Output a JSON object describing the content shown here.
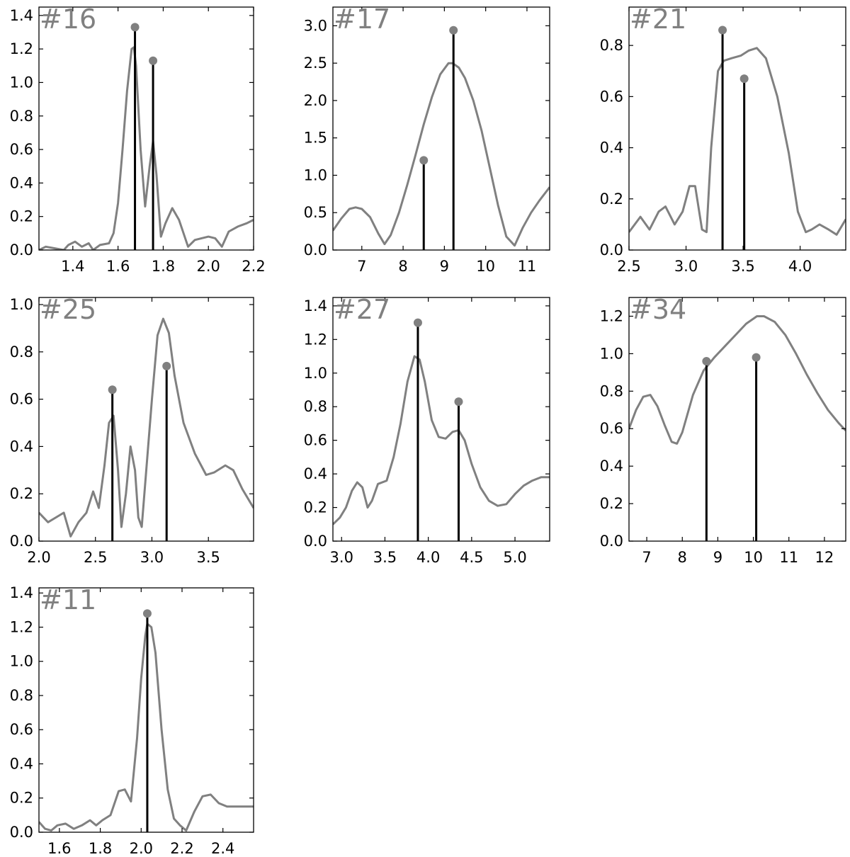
{
  "colors": {
    "curve": "#808080",
    "stem": "#000000",
    "marker": "#808080",
    "label": "#808080"
  },
  "chart_data": [
    {
      "type": "line",
      "label": "#16",
      "xlim": [
        1.25,
        2.2
      ],
      "ylim": [
        0,
        1.45
      ],
      "xticks": [
        1.4,
        1.6,
        1.8,
        2.0,
        2.2
      ],
      "xtick_labels": [
        "1.4",
        "1.6",
        "1.8",
        "2.0",
        "2.2"
      ],
      "yticks": [
        0,
        0.2,
        0.4,
        0.6,
        0.8,
        1.0,
        1.2,
        1.4
      ],
      "ytick_labels": [
        "0.0",
        "0.2",
        "0.4",
        "0.6",
        "0.8",
        "1.0",
        "1.2",
        "1.4"
      ],
      "curve": [
        [
          1.25,
          0.0
        ],
        [
          1.28,
          0.02
        ],
        [
          1.32,
          0.01
        ],
        [
          1.36,
          0.0
        ],
        [
          1.38,
          0.03
        ],
        [
          1.41,
          0.05
        ],
        [
          1.44,
          0.02
        ],
        [
          1.47,
          0.04
        ],
        [
          1.49,
          0.0
        ],
        [
          1.52,
          0.03
        ],
        [
          1.56,
          0.04
        ],
        [
          1.58,
          0.1
        ],
        [
          1.6,
          0.28
        ],
        [
          1.62,
          0.6
        ],
        [
          1.64,
          0.95
        ],
        [
          1.66,
          1.2
        ],
        [
          1.67,
          1.21
        ],
        [
          1.68,
          1.1
        ],
        [
          1.7,
          0.6
        ],
        [
          1.72,
          0.26
        ],
        [
          1.74,
          0.5
        ],
        [
          1.755,
          0.65
        ],
        [
          1.77,
          0.45
        ],
        [
          1.79,
          0.08
        ],
        [
          1.81,
          0.16
        ],
        [
          1.84,
          0.25
        ],
        [
          1.87,
          0.18
        ],
        [
          1.91,
          0.02
        ],
        [
          1.94,
          0.06
        ],
        [
          1.97,
          0.07
        ],
        [
          2.0,
          0.08
        ],
        [
          2.03,
          0.07
        ],
        [
          2.06,
          0.02
        ],
        [
          2.09,
          0.11
        ],
        [
          2.13,
          0.14
        ],
        [
          2.17,
          0.16
        ],
        [
          2.2,
          0.18
        ]
      ],
      "stems": [
        {
          "x": 1.675,
          "y": 1.33
        },
        {
          "x": 1.755,
          "y": 1.13
        }
      ]
    },
    {
      "type": "line",
      "label": "#17",
      "xlim": [
        6.3,
        11.55
      ],
      "ylim": [
        0,
        3.25
      ],
      "xticks": [
        7,
        8,
        9,
        10,
        11
      ],
      "xtick_labels": [
        "7",
        "8",
        "9",
        "10",
        "11"
      ],
      "yticks": [
        0,
        0.5,
        1.0,
        1.5,
        2.0,
        2.5,
        3.0
      ],
      "ytick_labels": [
        "0.0",
        "0.5",
        "1.0",
        "1.5",
        "2.0",
        "2.5",
        "3.0"
      ],
      "curve": [
        [
          6.3,
          0.26
        ],
        [
          6.5,
          0.42
        ],
        [
          6.7,
          0.55
        ],
        [
          6.85,
          0.57
        ],
        [
          7.0,
          0.55
        ],
        [
          7.2,
          0.44
        ],
        [
          7.4,
          0.22
        ],
        [
          7.55,
          0.08
        ],
        [
          7.7,
          0.2
        ],
        [
          7.9,
          0.5
        ],
        [
          8.1,
          0.87
        ],
        [
          8.3,
          1.27
        ],
        [
          8.5,
          1.68
        ],
        [
          8.7,
          2.05
        ],
        [
          8.9,
          2.35
        ],
        [
          9.1,
          2.5
        ],
        [
          9.2,
          2.5
        ],
        [
          9.35,
          2.44
        ],
        [
          9.5,
          2.3
        ],
        [
          9.7,
          2.0
        ],
        [
          9.9,
          1.6
        ],
        [
          10.1,
          1.1
        ],
        [
          10.3,
          0.6
        ],
        [
          10.5,
          0.18
        ],
        [
          10.7,
          0.06
        ],
        [
          10.9,
          0.3
        ],
        [
          11.1,
          0.5
        ],
        [
          11.3,
          0.66
        ],
        [
          11.55,
          0.84
        ]
      ],
      "stems": [
        {
          "x": 8.5,
          "y": 1.2
        },
        {
          "x": 9.22,
          "y": 2.94
        }
      ]
    },
    {
      "type": "line",
      "label": "#21",
      "xlim": [
        2.5,
        4.4
      ],
      "ylim": [
        0,
        0.95
      ],
      "xticks": [
        2.5,
        3.0,
        3.5,
        4.0
      ],
      "xtick_labels": [
        "2.5",
        "3.0",
        "3.5",
        "4.0"
      ],
      "yticks": [
        0,
        0.2,
        0.4,
        0.6,
        0.8
      ],
      "ytick_labels": [
        "0.0",
        "0.2",
        "0.4",
        "0.6",
        "0.8"
      ],
      "curve": [
        [
          2.5,
          0.07
        ],
        [
          2.6,
          0.13
        ],
        [
          2.68,
          0.08
        ],
        [
          2.76,
          0.15
        ],
        [
          2.82,
          0.17
        ],
        [
          2.9,
          0.1
        ],
        [
          2.97,
          0.15
        ],
        [
          3.03,
          0.25
        ],
        [
          3.08,
          0.25
        ],
        [
          3.14,
          0.08
        ],
        [
          3.18,
          0.07
        ],
        [
          3.22,
          0.4
        ],
        [
          3.28,
          0.7
        ],
        [
          3.33,
          0.74
        ],
        [
          3.4,
          0.75
        ],
        [
          3.48,
          0.76
        ],
        [
          3.55,
          0.78
        ],
        [
          3.62,
          0.79
        ],
        [
          3.7,
          0.75
        ],
        [
          3.8,
          0.6
        ],
        [
          3.9,
          0.38
        ],
        [
          3.98,
          0.15
        ],
        [
          4.05,
          0.07
        ],
        [
          4.1,
          0.08
        ],
        [
          4.17,
          0.1
        ],
        [
          4.25,
          0.08
        ],
        [
          4.32,
          0.06
        ],
        [
          4.4,
          0.12
        ]
      ],
      "stems": [
        {
          "x": 3.32,
          "y": 0.86
        },
        {
          "x": 3.51,
          "y": 0.67
        }
      ]
    },
    {
      "type": "line",
      "label": "#25",
      "xlim": [
        2.0,
        3.9
      ],
      "ylim": [
        0,
        1.03
      ],
      "xticks": [
        2.0,
        2.5,
        3.0,
        3.5
      ],
      "xtick_labels": [
        "2.0",
        "2.5",
        "3.0",
        "3.5"
      ],
      "yticks": [
        0,
        0.2,
        0.4,
        0.6,
        0.8,
        1.0
      ],
      "ytick_labels": [
        "0.0",
        "0.2",
        "0.4",
        "0.6",
        "0.8",
        "1.0"
      ],
      "curve": [
        [
          2.0,
          0.12
        ],
        [
          2.08,
          0.08
        ],
        [
          2.15,
          0.1
        ],
        [
          2.22,
          0.12
        ],
        [
          2.28,
          0.02
        ],
        [
          2.35,
          0.08
        ],
        [
          2.42,
          0.12
        ],
        [
          2.48,
          0.21
        ],
        [
          2.53,
          0.14
        ],
        [
          2.58,
          0.32
        ],
        [
          2.62,
          0.5
        ],
        [
          2.66,
          0.53
        ],
        [
          2.7,
          0.3
        ],
        [
          2.73,
          0.06
        ],
        [
          2.77,
          0.2
        ],
        [
          2.81,
          0.4
        ],
        [
          2.85,
          0.3
        ],
        [
          2.88,
          0.1
        ],
        [
          2.91,
          0.06
        ],
        [
          2.95,
          0.3
        ],
        [
          3.0,
          0.6
        ],
        [
          3.05,
          0.87
        ],
        [
          3.1,
          0.94
        ],
        [
          3.15,
          0.88
        ],
        [
          3.2,
          0.7
        ],
        [
          3.28,
          0.5
        ],
        [
          3.38,
          0.37
        ],
        [
          3.48,
          0.28
        ],
        [
          3.55,
          0.29
        ],
        [
          3.65,
          0.32
        ],
        [
          3.72,
          0.3
        ],
        [
          3.8,
          0.22
        ],
        [
          3.9,
          0.14
        ]
      ],
      "stems": [
        {
          "x": 2.65,
          "y": 0.64
        },
        {
          "x": 3.13,
          "y": 0.74
        }
      ]
    },
    {
      "type": "line",
      "label": "#27",
      "xlim": [
        2.9,
        5.4
      ],
      "ylim": [
        0,
        1.45
      ],
      "xticks": [
        3.0,
        3.5,
        4.0,
        4.5,
        5.0
      ],
      "xtick_labels": [
        "3.0",
        "3.5",
        "4.0",
        "4.5",
        "5.0"
      ],
      "yticks": [
        0,
        0.2,
        0.4,
        0.6,
        0.8,
        1.0,
        1.2,
        1.4
      ],
      "ytick_labels": [
        "0.0",
        "0.2",
        "0.4",
        "0.6",
        "0.8",
        "1.0",
        "1.2",
        "1.4"
      ],
      "curve": [
        [
          2.9,
          0.1
        ],
        [
          2.98,
          0.14
        ],
        [
          3.05,
          0.2
        ],
        [
          3.12,
          0.3
        ],
        [
          3.18,
          0.35
        ],
        [
          3.24,
          0.32
        ],
        [
          3.3,
          0.2
        ],
        [
          3.35,
          0.24
        ],
        [
          3.42,
          0.34
        ],
        [
          3.52,
          0.36
        ],
        [
          3.6,
          0.5
        ],
        [
          3.68,
          0.7
        ],
        [
          3.76,
          0.95
        ],
        [
          3.84,
          1.1
        ],
        [
          3.9,
          1.08
        ],
        [
          3.96,
          0.95
        ],
        [
          4.04,
          0.72
        ],
        [
          4.12,
          0.62
        ],
        [
          4.2,
          0.61
        ],
        [
          4.28,
          0.65
        ],
        [
          4.35,
          0.66
        ],
        [
          4.42,
          0.6
        ],
        [
          4.5,
          0.46
        ],
        [
          4.6,
          0.32
        ],
        [
          4.7,
          0.24
        ],
        [
          4.8,
          0.21
        ],
        [
          4.9,
          0.22
        ],
        [
          5.0,
          0.28
        ],
        [
          5.1,
          0.33
        ],
        [
          5.2,
          0.36
        ],
        [
          5.3,
          0.38
        ],
        [
          5.4,
          0.38
        ]
      ],
      "stems": [
        {
          "x": 3.88,
          "y": 1.3
        },
        {
          "x": 4.35,
          "y": 0.83
        }
      ]
    },
    {
      "type": "line",
      "label": "#34",
      "xlim": [
        6.5,
        12.6
      ],
      "ylim": [
        0,
        1.3
      ],
      "xticks": [
        7,
        8,
        9,
        10,
        11,
        12
      ],
      "xtick_labels": [
        "7",
        "8",
        "9",
        "10",
        "11",
        "12"
      ],
      "yticks": [
        0,
        0.2,
        0.4,
        0.6,
        0.8,
        1.0,
        1.2
      ],
      "ytick_labels": [
        "0.0",
        "0.2",
        "0.4",
        "0.6",
        "0.8",
        "1.0",
        "1.2"
      ],
      "curve": [
        [
          6.5,
          0.6
        ],
        [
          6.7,
          0.7
        ],
        [
          6.9,
          0.77
        ],
        [
          7.1,
          0.78
        ],
        [
          7.3,
          0.72
        ],
        [
          7.5,
          0.62
        ],
        [
          7.7,
          0.53
        ],
        [
          7.85,
          0.52
        ],
        [
          8.0,
          0.58
        ],
        [
          8.3,
          0.78
        ],
        [
          8.6,
          0.91
        ],
        [
          8.9,
          0.98
        ],
        [
          9.2,
          1.04
        ],
        [
          9.5,
          1.1
        ],
        [
          9.8,
          1.16
        ],
        [
          10.1,
          1.2
        ],
        [
          10.3,
          1.2
        ],
        [
          10.6,
          1.17
        ],
        [
          10.9,
          1.1
        ],
        [
          11.2,
          1.0
        ],
        [
          11.5,
          0.89
        ],
        [
          11.8,
          0.79
        ],
        [
          12.1,
          0.7
        ],
        [
          12.4,
          0.63
        ],
        [
          12.6,
          0.59
        ]
      ],
      "stems": [
        {
          "x": 8.68,
          "y": 0.96
        },
        {
          "x": 10.08,
          "y": 0.98
        }
      ]
    },
    {
      "type": "line",
      "label": "#11",
      "xlim": [
        1.5,
        2.55
      ],
      "ylim": [
        0,
        1.43
      ],
      "xticks": [
        1.6,
        1.8,
        2.0,
        2.2,
        2.4
      ],
      "xtick_labels": [
        "1.6",
        "1.8",
        "2.0",
        "2.2",
        "2.4"
      ],
      "yticks": [
        0,
        0.2,
        0.4,
        0.6,
        0.8,
        1.0,
        1.2,
        1.4
      ],
      "ytick_labels": [
        "0.0",
        "0.2",
        "0.4",
        "0.6",
        "0.8",
        "1.0",
        "1.2",
        "1.4"
      ],
      "curve": [
        [
          1.5,
          0.06
        ],
        [
          1.53,
          0.02
        ],
        [
          1.56,
          0.01
        ],
        [
          1.59,
          0.04
        ],
        [
          1.63,
          0.05
        ],
        [
          1.67,
          0.02
        ],
        [
          1.71,
          0.04
        ],
        [
          1.75,
          0.07
        ],
        [
          1.78,
          0.04
        ],
        [
          1.81,
          0.07
        ],
        [
          1.85,
          0.1
        ],
        [
          1.89,
          0.24
        ],
        [
          1.92,
          0.25
        ],
        [
          1.95,
          0.18
        ],
        [
          1.98,
          0.55
        ],
        [
          2.0,
          0.9
        ],
        [
          2.02,
          1.15
        ],
        [
          2.03,
          1.22
        ],
        [
          2.05,
          1.2
        ],
        [
          2.07,
          1.05
        ],
        [
          2.1,
          0.6
        ],
        [
          2.13,
          0.25
        ],
        [
          2.16,
          0.08
        ],
        [
          2.19,
          0.04
        ],
        [
          2.22,
          0.01
        ],
        [
          2.26,
          0.12
        ],
        [
          2.3,
          0.21
        ],
        [
          2.34,
          0.22
        ],
        [
          2.38,
          0.17
        ],
        [
          2.42,
          0.15
        ],
        [
          2.47,
          0.15
        ],
        [
          2.55,
          0.15
        ]
      ],
      "stems": [
        {
          "x": 2.03,
          "y": 1.28
        }
      ]
    }
  ]
}
